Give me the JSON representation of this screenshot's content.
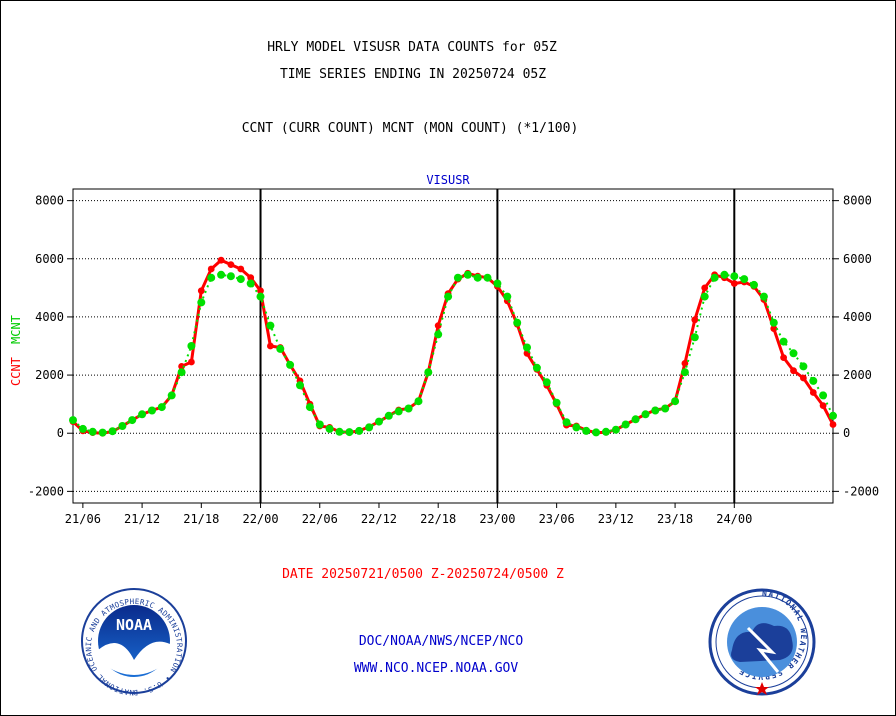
{
  "header": {
    "line1": "HRLY MODEL VISUSR DATA COUNTS for 05Z",
    "line2": "TIME SERIES ENDING IN 20250724 05Z",
    "line3": "CCNT (CURR COUNT) MCNT (MON COUNT) (*1/100)"
  },
  "footer": {
    "date_range": "DATE 20250721/0500 Z-20250724/0500 Z",
    "org": "DOC/NOAA/NWS/NCEP/NCO",
    "url": "WWW.NCO.NCEP.NOAA.GOV"
  },
  "logos": {
    "noaa_text": "NOAA",
    "noaa_ring": "NATIONAL OCEANIC AND ATMOSPHERIC ADMINISTRATION • U.S. DEPARTMENT OF COMMERCE •",
    "nws_ring": "NATIONAL WEATHER SERVICE"
  },
  "colors": {
    "ccnt": "#ff0000",
    "mcnt": "#00e000",
    "title": "#000000",
    "panel_title": "#0000cc",
    "footer_date": "#ff0000",
    "footer_links": "#0000cc"
  },
  "chart_data": {
    "type": "line",
    "title": "VISUSR",
    "ylabel_left": [
      "CCNT",
      "MCNT"
    ],
    "ylim": [
      -2400,
      8400
    ],
    "y_ticks": [
      -2000,
      0,
      2000,
      4000,
      6000,
      8000
    ],
    "x_ticks": [
      {
        "label": "21/06",
        "hour": 1
      },
      {
        "label": "21/12",
        "hour": 7
      },
      {
        "label": "21/18",
        "hour": 13
      },
      {
        "label": "22/00",
        "hour": 19
      },
      {
        "label": "22/06",
        "hour": 25
      },
      {
        "label": "22/12",
        "hour": 31
      },
      {
        "label": "22/18",
        "hour": 37
      },
      {
        "label": "23/00",
        "hour": 43
      },
      {
        "label": "23/06",
        "hour": 49
      },
      {
        "label": "23/12",
        "hour": 55
      },
      {
        "label": "23/18",
        "hour": 61
      },
      {
        "label": "24/00",
        "hour": 67
      }
    ],
    "day_boundaries": [
      19,
      43,
      67
    ],
    "x_start": "21/05",
    "x_step_hours": 1,
    "grid": "horizontal dotted",
    "series": [
      {
        "name": "CCNT",
        "values": [
          400,
          80,
          20,
          0,
          60,
          250,
          450,
          650,
          780,
          900,
          1300,
          2300,
          2450,
          4900,
          5650,
          5950,
          5800,
          5650,
          5350,
          4900,
          3000,
          2950,
          2350,
          1800,
          1000,
          250,
          200,
          50,
          30,
          80,
          220,
          400,
          600,
          800,
          850,
          1100,
          2100,
          3700,
          4800,
          5300,
          5500,
          5400,
          5350,
          5050,
          4550,
          3750,
          2750,
          2200,
          1650,
          1000,
          280,
          250,
          100,
          20,
          30,
          120,
          300,
          480,
          650,
          800,
          850,
          1100,
          2400,
          3900,
          5000,
          5450,
          5350,
          5150,
          5200,
          5050,
          4600,
          3600,
          2600,
          2150,
          1900,
          1400,
          950,
          300
        ]
      },
      {
        "name": "MCNT",
        "values": [
          450,
          150,
          50,
          20,
          70,
          250,
          450,
          650,
          780,
          900,
          1300,
          2100,
          3000,
          4500,
          5350,
          5450,
          5400,
          5300,
          5150,
          4700,
          3700,
          2900,
          2350,
          1650,
          900,
          300,
          150,
          50,
          40,
          80,
          200,
          400,
          600,
          750,
          850,
          1100,
          2100,
          3400,
          4700,
          5350,
          5450,
          5350,
          5350,
          5150,
          4700,
          3800,
          2950,
          2250,
          1750,
          1050,
          380,
          200,
          80,
          30,
          50,
          120,
          300,
          480,
          650,
          780,
          850,
          1100,
          2100,
          3300,
          4700,
          5350,
          5450,
          5400,
          5300,
          5100,
          4700,
          3800,
          3150,
          2750,
          2300,
          1800,
          1300,
          600
        ]
      }
    ]
  }
}
